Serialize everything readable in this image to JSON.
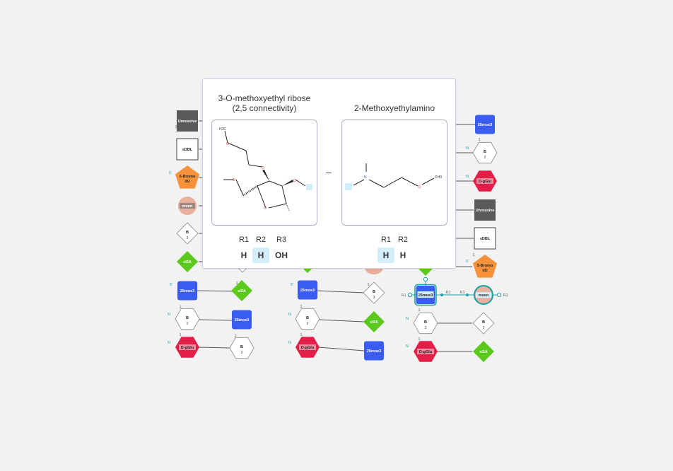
{
  "colors": {
    "moe3": "#3b5cf2",
    "unresolve": "#5a5a5a",
    "bromo": "#f7923a",
    "moen": "#e8b09d",
    "cl2a": "#5bc91c",
    "dgglu": "#e11f49",
    "link": "#1aa3ab",
    "oxygen": "#e0402e",
    "nitrogen": "#3a4fe0",
    "highlight": "#d4eef9"
  },
  "labels": {
    "moe3": "25moe3",
    "unresolve": "Unresolve",
    "sdbl": "sDBL",
    "bromo": [
      "5-Bromo",
      "dU"
    ],
    "moen": "moen",
    "cl2a": "cl2A",
    "dgglu": "D-gGlu",
    "base": "B",
    "end5": "5'",
    "endN": "N",
    "r1": "R1",
    "r2": "R2",
    "one": "1",
    "two": "2",
    "three": "3"
  },
  "tooltip": {
    "left": {
      "title_line1": "3-O-methoxyethyl ribose",
      "title_line2": "(2,5 connectivity)",
      "atoms": {
        "o": "O",
        "ch3": "H3C"
      },
      "rgroups": [
        {
          "name": "R1",
          "value": "H",
          "highlight": false
        },
        {
          "name": "R2",
          "value": "H",
          "highlight": true
        },
        {
          "name": "R3",
          "value": "OH",
          "highlight": false
        }
      ]
    },
    "separator": "–",
    "right": {
      "title": "2-Methoxyethylamino",
      "atoms": {
        "n": "N",
        "o": "O",
        "ch3": "CH3"
      },
      "rgroups": [
        {
          "name": "R1",
          "value": "H",
          "highlight": true
        },
        {
          "name": "R2",
          "value": "H",
          "highlight": false
        }
      ]
    }
  }
}
